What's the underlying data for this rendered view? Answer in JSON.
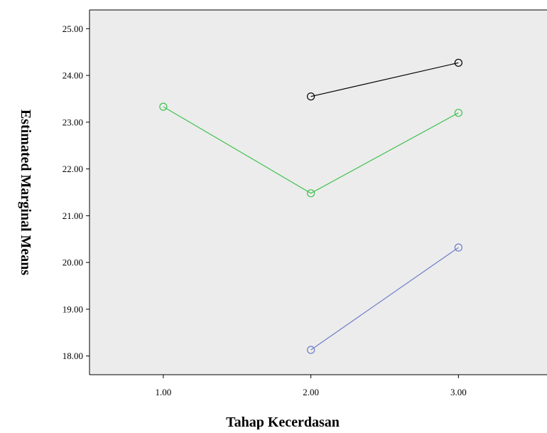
{
  "chart_data": {
    "type": "line",
    "title": "",
    "xlabel": "Tahap Kecerdasan",
    "ylabel": "Estimated Marginal Means",
    "xlim": [
      0.5,
      3.6
    ],
    "ylim": [
      17.6,
      25.4
    ],
    "x_ticks": [
      1.0,
      2.0,
      3.0
    ],
    "x_tick_labels": [
      "1.00",
      "2.00",
      "3.00"
    ],
    "y_ticks": [
      18,
      19,
      20,
      21,
      22,
      23,
      24,
      25
    ],
    "y_tick_labels": [
      "18.00",
      "19.00",
      "20.00",
      "21.00",
      "22.00",
      "23.00",
      "24.00",
      "25.00"
    ],
    "grid": false,
    "plot_background": "#ececec",
    "series": [
      {
        "color": "#000000",
        "points": [
          {
            "x": 2.0,
            "y": 23.55
          },
          {
            "x": 3.0,
            "y": 24.27
          }
        ]
      },
      {
        "color": "#3fc24f",
        "points": [
          {
            "x": 1.0,
            "y": 23.33
          },
          {
            "x": 2.0,
            "y": 21.48
          },
          {
            "x": 3.0,
            "y": 23.2
          }
        ]
      },
      {
        "color": "#6f7dc8",
        "points": [
          {
            "x": 2.0,
            "y": 18.13
          },
          {
            "x": 3.0,
            "y": 20.32
          }
        ]
      }
    ]
  }
}
